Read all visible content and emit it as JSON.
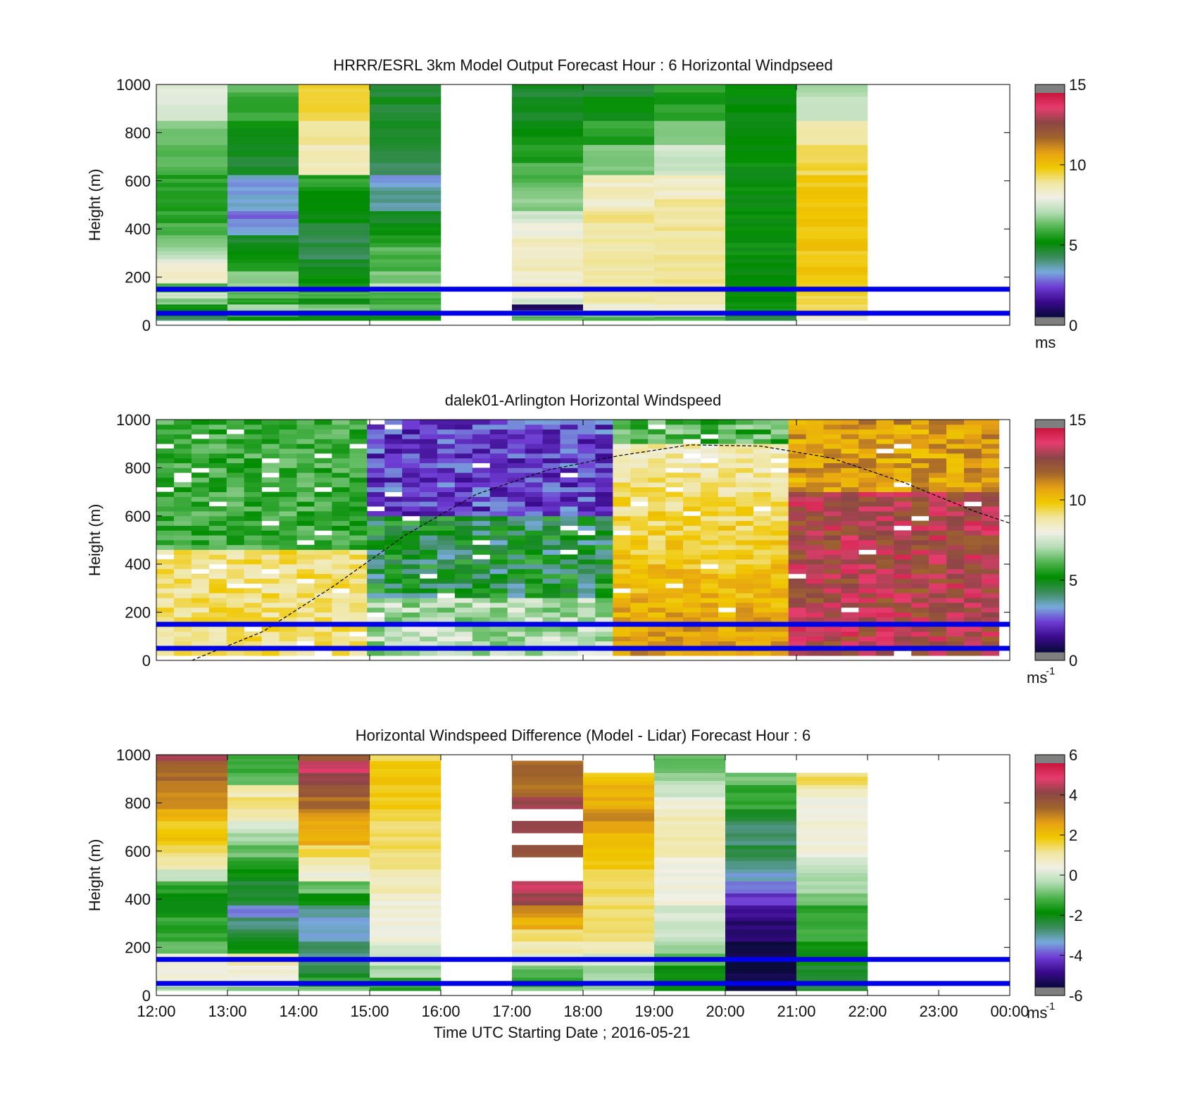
{
  "chart_data": [
    {
      "type": "heatmap",
      "title": "HRRR/ESRL 3km Model Output   Forecast Hour : 6 Horizontal Windpseed",
      "ylabel": "Height (m)",
      "xlabel": "",
      "ylim": [
        0,
        1000
      ],
      "yticks": [
        "0",
        "200",
        "400",
        "600",
        "800",
        "1000"
      ],
      "xlim_hours": [
        12,
        24
      ],
      "time_columns": [
        "12:00",
        "13:00",
        "14:00",
        "15:00",
        "16:00",
        "17:00",
        "18:00",
        "19:00",
        "20:00",
        "21:00",
        "22:00",
        "23:00"
      ],
      "height_levels_m": [
        25,
        50,
        75,
        100,
        125,
        150,
        200,
        250,
        300,
        350,
        400,
        450,
        500,
        550,
        600,
        650,
        700,
        800,
        900,
        1000
      ],
      "values": [
        [
          4,
          4.5,
          5,
          6.5,
          7.5,
          6,
          8.5,
          8,
          7,
          6.5,
          6,
          5.5,
          5.5,
          5.5,
          5.5,
          6,
          6,
          6.5,
          7.8,
          7.7
        ],
        [
          5,
          6,
          7,
          5.5,
          6,
          6.5,
          6.5,
          5.5,
          5,
          4.5,
          3,
          2.5,
          3,
          3,
          3,
          4.5,
          4.5,
          5,
          5.8,
          6
        ],
        [
          5,
          5.5,
          6.5,
          5,
          6,
          5.5,
          5,
          4.5,
          4,
          4.2,
          4.5,
          5,
          5,
          5,
          5.5,
          8.5,
          8.5,
          9,
          9.5,
          9.5
        ],
        [
          5,
          5.5,
          6,
          5.5,
          6,
          7,
          6.5,
          6,
          6,
          5.5,
          5,
          4.5,
          3.5,
          3.5,
          3,
          4,
          4.5,
          4.5,
          4.5,
          4.5
        ],
        [
          null,
          null,
          null,
          null,
          null,
          null,
          null,
          null,
          null,
          null,
          null,
          null,
          null,
          null,
          null,
          null,
          null,
          null,
          null,
          null
        ],
        [
          6,
          7,
          0.5,
          7.5,
          8,
          8.5,
          8.5,
          8.5,
          8.5,
          8.5,
          8,
          7.5,
          6.5,
          6.5,
          6,
          6,
          5.5,
          5,
          4.5,
          4.5
        ],
        [
          6,
          7,
          8,
          9,
          9,
          9,
          9,
          9,
          9,
          9,
          9,
          9,
          8.5,
          8.5,
          8.5,
          6.5,
          6.5,
          5.5,
          5,
          4.5
        ],
        [
          6,
          7.5,
          8.5,
          9,
          9,
          9,
          9,
          9,
          9,
          9,
          9,
          9,
          9,
          8.5,
          8.5,
          7.5,
          7.5,
          6.5,
          5.5,
          5.5
        ],
        [
          4,
          4.5,
          5,
          5,
          5,
          5,
          5,
          5,
          5,
          5,
          5,
          5,
          5,
          5,
          5,
          5,
          5,
          5,
          5,
          5
        ],
        [
          8,
          9.5,
          9.5,
          9.5,
          9.5,
          10,
          10,
          10,
          10,
          10,
          10,
          10,
          10,
          10,
          10,
          9.5,
          9.5,
          9,
          7.5,
          7
        ],
        [
          null,
          null,
          null,
          null,
          null,
          null,
          null,
          null,
          null,
          null,
          null,
          null,
          null,
          null,
          null,
          null,
          null,
          null,
          null,
          null
        ],
        [
          null,
          null,
          null,
          null,
          null,
          null,
          null,
          null,
          null,
          null,
          null,
          null,
          null,
          null,
          null,
          null,
          null,
          null,
          null,
          null
        ]
      ],
      "colorbar": {
        "range": [
          0,
          15
        ],
        "ticks": [
          "0",
          "5",
          "10",
          "15"
        ],
        "unit": "ms",
        "unit_sup": ""
      },
      "reference_lines_m": [
        50,
        150
      ],
      "reference_line_color": "#0000e6"
    },
    {
      "type": "heatmap",
      "title": "dalek01-Arlington  Horizontal Windspeed",
      "ylabel": "Height (m)",
      "xlabel": "",
      "ylim": [
        0,
        1000
      ],
      "yticks": [
        "0",
        "200",
        "400",
        "600",
        "800",
        "1000"
      ],
      "xlim_hours": [
        12,
        24
      ],
      "time_range_hours": [
        12,
        23.85
      ],
      "profile_count": 48,
      "level_step_m": 20,
      "values_description_omitted": true,
      "colorbar": {
        "range": [
          0,
          15
        ],
        "ticks": [
          "0",
          "5",
          "10",
          "15"
        ],
        "unit": "ms",
        "unit_sup": "-1"
      },
      "reference_lines_m": [
        50,
        150
      ],
      "reference_line_color": "#0000e6",
      "boundary_layer_curve": {
        "style": "dashed",
        "color": "#000000",
        "points": [
          [
            12.5,
            0
          ],
          [
            13.5,
            120
          ],
          [
            14.5,
            310
          ],
          [
            15.5,
            520
          ],
          [
            16.5,
            690
          ],
          [
            17.5,
            790
          ],
          [
            18.5,
            850
          ],
          [
            19.5,
            895
          ],
          [
            20.5,
            890
          ],
          [
            21.5,
            840
          ],
          [
            22.5,
            740
          ],
          [
            23.5,
            620
          ],
          [
            24,
            570
          ]
        ]
      }
    },
    {
      "type": "heatmap",
      "title": "Horizontal Windspeed Difference (Model - Lidar) Forecast Hour : 6",
      "ylabel": "Height (m)",
      "xlabel": "Time UTC  Starting Date ; 2016-05-21",
      "ylim": [
        0,
        1000
      ],
      "yticks": [
        "0",
        "200",
        "400",
        "600",
        "800",
        "1000"
      ],
      "xlim_hours": [
        12,
        24
      ],
      "xticks": [
        "12:00",
        "13:00",
        "14:00",
        "15:00",
        "16:00",
        "17:00",
        "18:00",
        "19:00",
        "20:00",
        "21:00",
        "22:00",
        "23:00",
        "00:00"
      ],
      "height_levels_m": [
        25,
        50,
        100,
        150,
        200,
        250,
        300,
        350,
        400,
        450,
        500,
        550,
        600,
        650,
        700,
        750,
        800,
        850,
        900,
        950,
        1000
      ],
      "values": [
        [
          -0.5,
          0.5,
          0.5,
          0.5,
          -1,
          -1.5,
          -1.5,
          -2,
          -2,
          -1.5,
          0,
          1,
          1.5,
          2,
          2,
          2.5,
          3,
          3,
          3.5,
          3.5,
          4.5
        ],
        [
          -1,
          0.5,
          0.5,
          1,
          -2,
          -2.5,
          -3,
          -4,
          -2.5,
          -2.5,
          -2,
          -1.5,
          -1,
          -0.5,
          0,
          1,
          1.5,
          1,
          -1,
          -1.5,
          -1.5
        ],
        [
          -1,
          -1.5,
          -2.5,
          -3,
          -3,
          -3.5,
          -3.5,
          -3,
          -2,
          -1,
          0.5,
          1,
          1.5,
          2.5,
          2.5,
          3,
          3.5,
          4,
          4.5,
          5,
          4
        ],
        [
          -1.5,
          -1.5,
          -0.5,
          0,
          0,
          0.5,
          0.5,
          0.5,
          0.5,
          1,
          1,
          1.5,
          1.5,
          1.5,
          1.5,
          1.5,
          2,
          2,
          2,
          2,
          1.5
        ],
        [
          null,
          null,
          null,
          null,
          null,
          null,
          null,
          null,
          null,
          null,
          null,
          null,
          null,
          null,
          null,
          null,
          null,
          null,
          null,
          null,
          null
        ],
        [
          -1,
          -1.5,
          -1,
          0,
          1,
          1.5,
          2.5,
          3,
          4.5,
          5,
          null,
          null,
          4,
          null,
          4.5,
          null,
          4.5,
          3.5,
          3.5,
          3.5,
          null
        ],
        [
          -0.5,
          -0.5,
          -0.5,
          0,
          1,
          1.5,
          1.5,
          1.5,
          1.5,
          1.5,
          1.5,
          2,
          2,
          2,
          2.5,
          3,
          2.5,
          2.5,
          2,
          null,
          null
        ],
        [
          -2,
          -2,
          -2,
          -1,
          -0.5,
          0,
          0,
          0,
          0.5,
          0.5,
          0.5,
          0.5,
          1,
          1,
          1,
          1,
          0.5,
          0,
          -0.5,
          -1,
          -1
        ],
        [
          -6,
          -6,
          -6,
          -6,
          -6,
          -5.5,
          -5.5,
          -5,
          -4.5,
          -4,
          -3.5,
          -3,
          -2.5,
          -3,
          -3,
          -2.5,
          -1.5,
          -1.5,
          -1,
          null,
          null
        ],
        [
          -2.5,
          -2.5,
          -2.5,
          -2,
          -2,
          -1.5,
          -1.5,
          -1.5,
          -1,
          -0.5,
          -0.5,
          0,
          0.5,
          0.5,
          0.5,
          0.5,
          0.5,
          1,
          1.5,
          null,
          null
        ],
        [
          null,
          null,
          null,
          null,
          null,
          null,
          null,
          null,
          null,
          null,
          null,
          null,
          null,
          null,
          null,
          null,
          null,
          null,
          null,
          null,
          null
        ],
        [
          null,
          null,
          null,
          null,
          null,
          null,
          null,
          null,
          null,
          null,
          null,
          null,
          null,
          null,
          null,
          null,
          null,
          null,
          null,
          null,
          null
        ]
      ],
      "colorbar": {
        "range": [
          -6,
          6
        ],
        "ticks": [
          "-6",
          "-4",
          "-2",
          "0",
          "2",
          "4",
          "6"
        ],
        "unit": "ms",
        "unit_sup": "-1"
      },
      "reference_lines_m": [
        50,
        150
      ],
      "reference_line_color": "#0000e6"
    }
  ],
  "colormap": [
    "#7f7f7f",
    "#0a0a3c",
    "#3a0a8c",
    "#6e3cd2",
    "#78aadc",
    "#3c8c5a",
    "#008c00",
    "#50b450",
    "#b4dcb4",
    "#f0f0e6",
    "#f0e6a0",
    "#f0c800",
    "#e6a014",
    "#a0642d",
    "#8c4646",
    "#e63c6e",
    "#c8143c",
    "#7f7f7f"
  ]
}
